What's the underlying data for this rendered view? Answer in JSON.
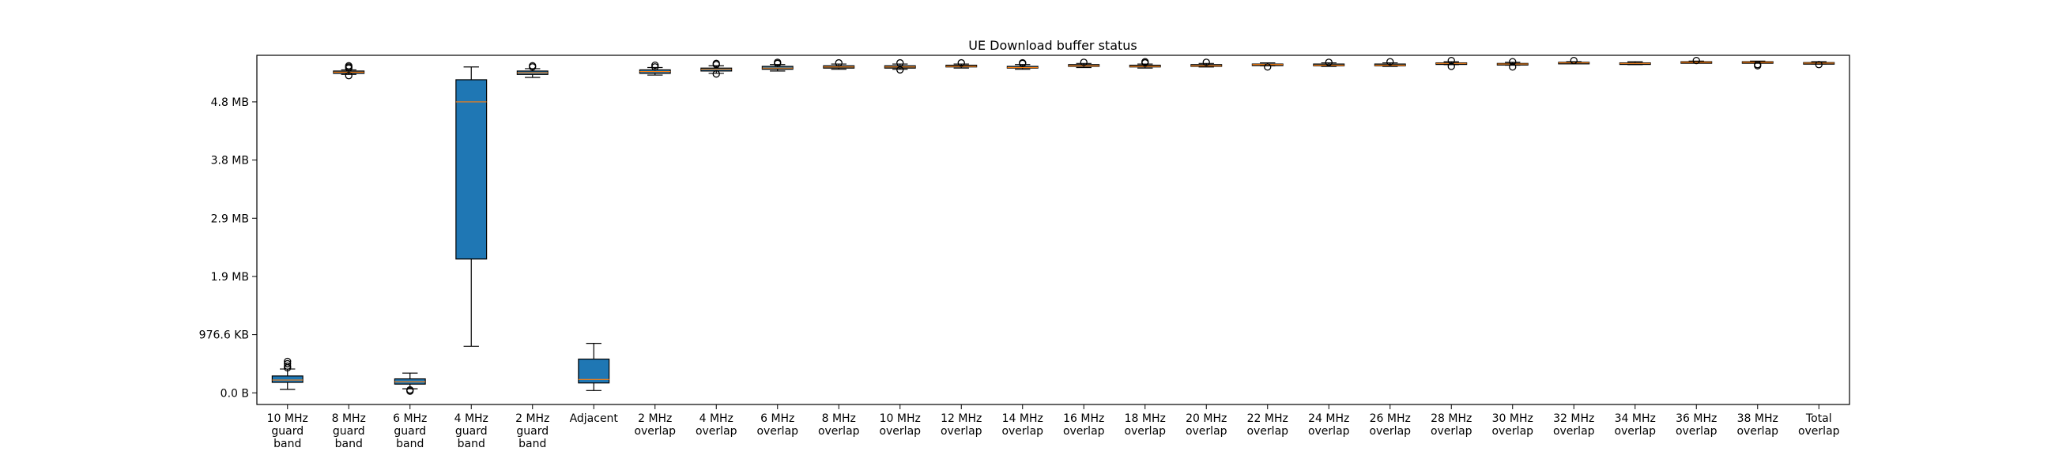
{
  "chart_data": {
    "type": "box",
    "title": "UE Download buffer status",
    "xlabel": "",
    "ylabel": "",
    "y_unit": "bytes",
    "ylim": [
      -200000,
      5800000
    ],
    "yticks": [
      {
        "value": 0,
        "label": "0.0 B"
      },
      {
        "value": 1000000,
        "label": "976.6 KB"
      },
      {
        "value": 2000000,
        "label": "1.9 MB"
      },
      {
        "value": 3000000,
        "label": "2.9 MB"
      },
      {
        "value": 4000000,
        "label": "3.8 MB"
      },
      {
        "value": 5000000,
        "label": "4.8 MB"
      }
    ],
    "grid": false,
    "box_color": "#1f77b4",
    "median_color": "#ff7f0e",
    "categories": [
      "10 MHz\nguard\nband",
      "8 MHz\nguard\nband",
      "6 MHz\nguard\nband",
      "4 MHz\nguard\nband",
      "2 MHz\nguard\nband",
      "Adjacent",
      "2 MHz\noverlap",
      "4 MHz\noverlap",
      "6 MHz\noverlap",
      "8 MHz\noverlap",
      "10 MHz\noverlap",
      "12 MHz\noverlap",
      "14 MHz\noverlap",
      "16 MHz\noverlap",
      "18 MHz\noverlap",
      "20 MHz\noverlap",
      "22 MHz\noverlap",
      "24 MHz\noverlap",
      "26 MHz\noverlap",
      "28 MHz\noverlap",
      "30 MHz\noverlap",
      "32 MHz\noverlap",
      "34 MHz\noverlap",
      "36 MHz\noverlap",
      "38 MHz\noverlap",
      "Total\noverlap"
    ],
    "boxes": [
      {
        "whislo": 60000,
        "q1": 180000,
        "med": 220000,
        "q3": 290000,
        "whishi": 410000,
        "fliers": [
          430000,
          460000,
          500000,
          540000
        ]
      },
      {
        "whislo": 5470000,
        "q1": 5490000,
        "med": 5510000,
        "q3": 5530000,
        "whishi": 5550000,
        "fliers": [
          5450000,
          5580000,
          5600000,
          5620000
        ]
      },
      {
        "whislo": 70000,
        "q1": 150000,
        "med": 190000,
        "q3": 240000,
        "whishi": 340000,
        "fliers": [
          30000,
          50000
        ]
      },
      {
        "whislo": 800000,
        "q1": 2300000,
        "med": 5000000,
        "q3": 5380000,
        "whishi": 5600000,
        "fliers": []
      },
      {
        "whislo": 5420000,
        "q1": 5470000,
        "med": 5500000,
        "q3": 5530000,
        "whishi": 5570000,
        "fliers": [
          5600000,
          5620000
        ]
      },
      {
        "whislo": 40000,
        "q1": 170000,
        "med": 230000,
        "q3": 580000,
        "whishi": 850000,
        "fliers": []
      },
      {
        "whislo": 5460000,
        "q1": 5490000,
        "med": 5520000,
        "q3": 5550000,
        "whishi": 5590000,
        "fliers": [
          5600000,
          5630000
        ]
      },
      {
        "whislo": 5490000,
        "q1": 5530000,
        "med": 5560000,
        "q3": 5580000,
        "whishi": 5620000,
        "fliers": [
          5480000,
          5640000,
          5660000
        ]
      },
      {
        "whislo": 5530000,
        "q1": 5560000,
        "med": 5580000,
        "q3": 5610000,
        "whishi": 5640000,
        "fliers": [
          5660000,
          5680000
        ]
      },
      {
        "whislo": 5560000,
        "q1": 5580000,
        "med": 5600000,
        "q3": 5620000,
        "whishi": 5650000,
        "fliers": [
          5670000
        ]
      },
      {
        "whislo": 5560000,
        "q1": 5580000,
        "med": 5600000,
        "q3": 5620000,
        "whishi": 5650000,
        "fliers": [
          5550000,
          5670000
        ]
      },
      {
        "whislo": 5580000,
        "q1": 5600000,
        "med": 5610000,
        "q3": 5630000,
        "whishi": 5650000,
        "fliers": [
          5670000
        ]
      },
      {
        "whislo": 5560000,
        "q1": 5580000,
        "med": 5590000,
        "q3": 5610000,
        "whishi": 5640000,
        "fliers": [
          5660000,
          5670000
        ]
      },
      {
        "whislo": 5590000,
        "q1": 5610000,
        "med": 5620000,
        "q3": 5640000,
        "whishi": 5660000,
        "fliers": [
          5680000
        ]
      },
      {
        "whislo": 5580000,
        "q1": 5600000,
        "med": 5610000,
        "q3": 5630000,
        "whishi": 5650000,
        "fliers": [
          5670000,
          5690000
        ]
      },
      {
        "whislo": 5600000,
        "q1": 5610000,
        "med": 5620000,
        "q3": 5640000,
        "whishi": 5660000,
        "fliers": [
          5680000
        ]
      },
      {
        "whislo": 5620000,
        "q1": 5630000,
        "med": 5640000,
        "q3": 5650000,
        "whishi": 5670000,
        "fliers": [
          5600000
        ]
      },
      {
        "whislo": 5610000,
        "q1": 5620000,
        "med": 5630000,
        "q3": 5650000,
        "whishi": 5670000,
        "fliers": [
          5680000
        ]
      },
      {
        "whislo": 5610000,
        "q1": 5620000,
        "med": 5630000,
        "q3": 5650000,
        "whishi": 5670000,
        "fliers": [
          5690000
        ]
      },
      {
        "whislo": 5640000,
        "q1": 5650000,
        "med": 5660000,
        "q3": 5670000,
        "whishi": 5690000,
        "fliers": [
          5610000,
          5710000
        ]
      },
      {
        "whislo": 5630000,
        "q1": 5640000,
        "med": 5650000,
        "q3": 5660000,
        "whishi": 5680000,
        "fliers": [
          5600000,
          5690000
        ]
      },
      {
        "whislo": 5660000,
        "q1": 5665000,
        "med": 5670000,
        "q3": 5680000,
        "whishi": 5690000,
        "fliers": [
          5710000
        ]
      },
      {
        "whislo": 5640000,
        "q1": 5650000,
        "med": 5660000,
        "q3": 5670000,
        "whishi": 5690000,
        "fliers": []
      },
      {
        "whislo": 5670000,
        "q1": 5675000,
        "med": 5680000,
        "q3": 5690000,
        "whishi": 5700000,
        "fliers": [
          5710000
        ]
      },
      {
        "whislo": 5670000,
        "q1": 5675000,
        "med": 5680000,
        "q3": 5690000,
        "whishi": 5700000,
        "fliers": [
          5620000,
          5640000
        ]
      },
      {
        "whislo": 5650000,
        "q1": 5660000,
        "med": 5665000,
        "q3": 5675000,
        "whishi": 5690000,
        "fliers": [
          5640000
        ]
      }
    ]
  }
}
